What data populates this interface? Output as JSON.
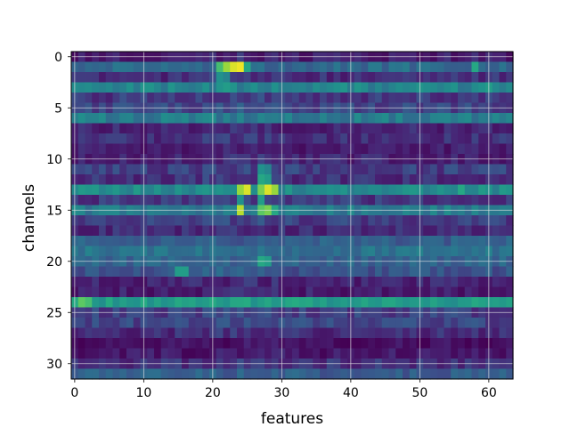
{
  "chart_data": {
    "type": "heatmap",
    "title": "",
    "xlabel": "features",
    "ylabel": "channels",
    "n_cols": 64,
    "n_rows": 32,
    "xlim": [
      -0.5,
      63.5
    ],
    "ylim": [
      31.5,
      -0.5
    ],
    "x_ticks": [
      0,
      10,
      20,
      30,
      40,
      50,
      60
    ],
    "y_ticks": [
      0,
      5,
      10,
      15,
      20,
      25,
      30
    ],
    "x_tick_labels": [
      "0",
      "10",
      "20",
      "30",
      "40",
      "50",
      "60"
    ],
    "y_tick_labels": [
      "0",
      "5",
      "10",
      "15",
      "20",
      "25",
      "30"
    ],
    "grid": true,
    "colormap": "viridis",
    "value_range": [
      0,
      1
    ],
    "row_base_values": [
      0.1,
      0.35,
      0.15,
      0.45,
      0.18,
      0.22,
      0.42,
      0.12,
      0.15,
      0.1,
      0.12,
      0.2,
      0.15,
      0.48,
      0.18,
      0.42,
      0.2,
      0.14,
      0.3,
      0.38,
      0.32,
      0.26,
      0.12,
      0.1,
      0.55,
      0.2,
      0.22,
      0.14,
      0.05,
      0.08,
      0.16,
      0.3
    ],
    "hotspots": [
      {
        "row": 1,
        "col": 22,
        "value": 0.85
      },
      {
        "row": 1,
        "col": 23,
        "value": 0.95
      },
      {
        "row": 1,
        "col": 24,
        "value": 0.98
      },
      {
        "row": 1,
        "col": 21,
        "value": 0.7
      },
      {
        "row": 1,
        "col": 25,
        "value": 0.6
      },
      {
        "row": 2,
        "col": 21,
        "value": 0.5
      },
      {
        "row": 2,
        "col": 22,
        "value": 0.45
      },
      {
        "row": 3,
        "col": 22,
        "value": 0.55
      },
      {
        "row": 13,
        "col": 24,
        "value": 0.85
      },
      {
        "row": 13,
        "col": 25,
        "value": 0.95
      },
      {
        "row": 13,
        "col": 27,
        "value": 0.8
      },
      {
        "row": 13,
        "col": 28,
        "value": 0.95
      },
      {
        "row": 13,
        "col": 29,
        "value": 0.85
      },
      {
        "row": 12,
        "col": 27,
        "value": 0.6
      },
      {
        "row": 12,
        "col": 28,
        "value": 0.55
      },
      {
        "row": 11,
        "col": 27,
        "value": 0.5
      },
      {
        "row": 11,
        "col": 28,
        "value": 0.45
      },
      {
        "row": 14,
        "col": 24,
        "value": 0.5
      },
      {
        "row": 14,
        "col": 27,
        "value": 0.55
      },
      {
        "row": 15,
        "col": 24,
        "value": 0.9
      },
      {
        "row": 15,
        "col": 27,
        "value": 0.75
      },
      {
        "row": 15,
        "col": 28,
        "value": 0.8
      },
      {
        "row": 15,
        "col": 29,
        "value": 0.6
      },
      {
        "row": 20,
        "col": 27,
        "value": 0.6
      },
      {
        "row": 20,
        "col": 28,
        "value": 0.55
      },
      {
        "row": 21,
        "col": 15,
        "value": 0.55
      },
      {
        "row": 21,
        "col": 16,
        "value": 0.55
      },
      {
        "row": 24,
        "col": 1,
        "value": 0.75
      },
      {
        "row": 24,
        "col": 2,
        "value": 0.7
      },
      {
        "row": 3,
        "col": 60,
        "value": 0.55
      },
      {
        "row": 1,
        "col": 58,
        "value": 0.6
      },
      {
        "row": 13,
        "col": 56,
        "value": 0.6
      }
    ]
  }
}
